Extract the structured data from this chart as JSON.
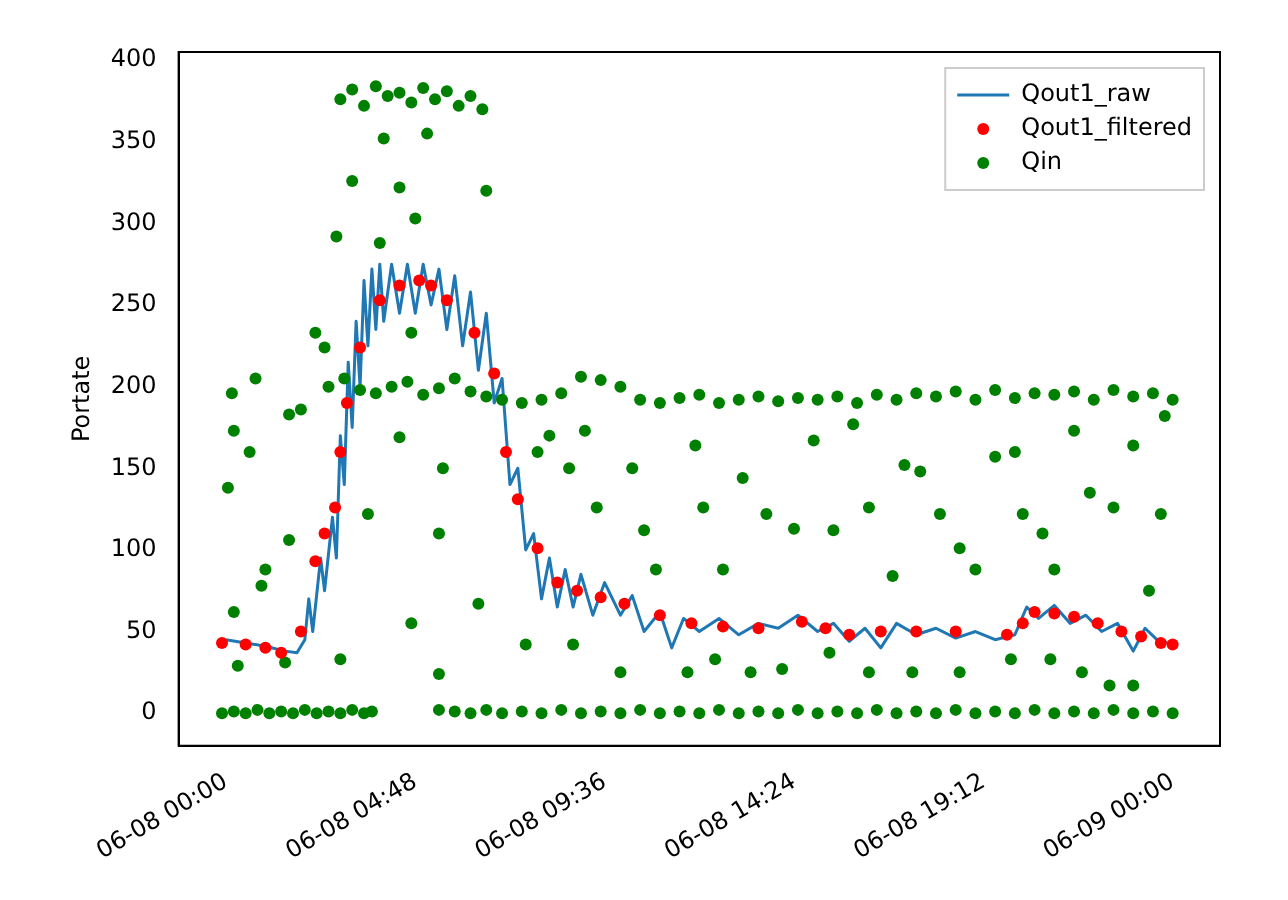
{
  "chart_data": {
    "type": "scatter",
    "ylabel": "Portate",
    "xlim": [
      "--06-07T22:48",
      "--06-09T01:12"
    ],
    "ylim": [
      -20,
      405
    ],
    "xticks": [
      {
        "value": "--06-08T00:00",
        "label": "06-08 00:00"
      },
      {
        "value": "--06-08T04:48",
        "label": "06-08 04:48"
      },
      {
        "value": "--06-08T09:36",
        "label": "06-08 09:36"
      },
      {
        "value": "--06-08T14:24",
        "label": "06-08 14:24"
      },
      {
        "value": "--06-08T19:12",
        "label": "06-08 19:12"
      },
      {
        "value": "--06-09T00:00",
        "label": "06-09 00:00"
      }
    ],
    "yticks": [
      0,
      50,
      100,
      150,
      200,
      250,
      300,
      350,
      400
    ],
    "grid": false,
    "legend": "top right",
    "series": [
      {
        "name": "Qout1_raw",
        "type": "line",
        "marker": "none",
        "color": "#1f77b4",
        "x": [
          "--06-08T00:00",
          "--06-08T00:30",
          "--06-08T01:00",
          "--06-08T01:30",
          "--06-08T01:48",
          "--06-08T02:00",
          "--06-08T02:06",
          "--06-08T02:12",
          "--06-08T02:24",
          "--06-08T02:30",
          "--06-08T02:42",
          "--06-08T02:48",
          "--06-08T02:54",
          "--06-08T03:00",
          "--06-08T03:06",
          "--06-08T03:12",
          "--06-08T03:18",
          "--06-08T03:24",
          "--06-08T03:30",
          "--06-08T03:36",
          "--06-08T03:42",
          "--06-08T03:48",
          "--06-08T03:54",
          "--06-08T04:00",
          "--06-08T04:12",
          "--06-08T04:24",
          "--06-08T04:36",
          "--06-08T04:48",
          "--06-08T05:00",
          "--06-08T05:12",
          "--06-08T05:24",
          "--06-08T05:36",
          "--06-08T05:48",
          "--06-08T06:00",
          "--06-08T06:12",
          "--06-08T06:24",
          "--06-08T06:36",
          "--06-08T06:48",
          "--06-08T07:00",
          "--06-08T07:12",
          "--06-08T07:24",
          "--06-08T07:36",
          "--06-08T07:48",
          "--06-08T08:00",
          "--06-08T08:12",
          "--06-08T08:24",
          "--06-08T08:36",
          "--06-08T08:48",
          "--06-08T09:00",
          "--06-08T09:18",
          "--06-08T09:36",
          "--06-08T10:00",
          "--06-08T10:18",
          "--06-08T10:36",
          "--06-08T11:00",
          "--06-08T11:18",
          "--06-08T11:36",
          "--06-08T12:00",
          "--06-08T12:30",
          "--06-08T13:00",
          "--06-08T13:30",
          "--06-08T14:00",
          "--06-08T14:30",
          "--06-08T15:00",
          "--06-08T15:24",
          "--06-08T15:48",
          "--06-08T16:12",
          "--06-08T16:36",
          "--06-08T17:00",
          "--06-08T17:30",
          "--06-08T18:00",
          "--06-08T18:30",
          "--06-08T19:00",
          "--06-08T19:30",
          "--06-08T20:00",
          "--06-08T20:18",
          "--06-08T20:36",
          "--06-08T21:00",
          "--06-08T21:24",
          "--06-08T21:48",
          "--06-08T22:12",
          "--06-08T22:36",
          "--06-08T23:00",
          "--06-08T23:18",
          "--06-08T23:36",
          "--06-09T00:00"
        ],
        "values": [
          45,
          43,
          41,
          38,
          37,
          45,
          70,
          50,
          95,
          75,
          120,
          95,
          170,
          140,
          215,
          175,
          240,
          200,
          265,
          225,
          272,
          235,
          275,
          240,
          275,
          245,
          275,
          245,
          275,
          250,
          272,
          235,
          268,
          225,
          258,
          210,
          245,
          190,
          205,
          140,
          150,
          100,
          110,
          70,
          95,
          65,
          88,
          65,
          85,
          60,
          80,
          60,
          72,
          50,
          62,
          40,
          58,
          50,
          58,
          48,
          55,
          52,
          60,
          50,
          55,
          44,
          52,
          40,
          55,
          48,
          52,
          46,
          50,
          45,
          48,
          65,
          58,
          66,
          55,
          60,
          50,
          55,
          38,
          52,
          45,
          42
        ]
      },
      {
        "name": "Qout1_filtered",
        "type": "scatter",
        "marker": "circle",
        "color": "#ff0000",
        "x": [
          "--06-07T23:54",
          "--06-08T00:30",
          "--06-08T01:00",
          "--06-08T01:24",
          "--06-08T01:54",
          "--06-08T02:16",
          "--06-08T02:30",
          "--06-08T02:46",
          "--06-08T02:54",
          "--06-08T03:04",
          "--06-08T03:24",
          "--06-08T03:54",
          "--06-08T04:24",
          "--06-08T04:54",
          "--06-08T05:12",
          "--06-08T05:36",
          "--06-08T06:18",
          "--06-08T06:48",
          "--06-08T07:06",
          "--06-08T07:24",
          "--06-08T07:54",
          "--06-08T08:24",
          "--06-08T08:54",
          "--06-08T09:30",
          "--06-08T10:06",
          "--06-08T11:00",
          "--06-08T11:48",
          "--06-08T12:36",
          "--06-08T13:30",
          "--06-08T14:36",
          "--06-08T15:12",
          "--06-08T15:48",
          "--06-08T16:36",
          "--06-08T17:30",
          "--06-08T18:30",
          "--06-08T19:48",
          "--06-08T20:12",
          "--06-08T20:30",
          "--06-08T21:00",
          "--06-08T21:30",
          "--06-08T22:06",
          "--06-08T22:42",
          "--06-08T23:12",
          "--06-08T23:42",
          "--06-09T00:00"
        ],
        "values": [
          43,
          42,
          40,
          37,
          50,
          93,
          110,
          126,
          160,
          190,
          224,
          253,
          262,
          265,
          262,
          253,
          233,
          208,
          160,
          131,
          101,
          80,
          75,
          71,
          67,
          60,
          55,
          53,
          52,
          56,
          52,
          48,
          50,
          50,
          50,
          48,
          55,
          62,
          61,
          59,
          55,
          50,
          47,
          43,
          42
        ]
      },
      {
        "name": "Qin",
        "type": "scatter",
        "marker": "circle",
        "color": "#008000",
        "x": [
          "--06-07T23:54",
          "--06-08T00:12",
          "--06-08T00:30",
          "--06-08T00:48",
          "--06-08T01:06",
          "--06-08T01:24",
          "--06-08T01:42",
          "--06-08T02:00",
          "--06-08T02:18",
          "--06-08T02:36",
          "--06-08T02:54",
          "--06-08T03:12",
          "--06-08T03:30",
          "--06-08T03:42",
          "--06-08T05:24",
          "--06-08T05:48",
          "--06-08T06:12",
          "--06-08T06:36",
          "--06-08T07:00",
          "--06-08T07:30",
          "--06-08T08:00",
          "--06-08T08:30",
          "--06-08T09:00",
          "--06-08T09:30",
          "--06-08T10:00",
          "--06-08T10:30",
          "--06-08T11:00",
          "--06-08T11:30",
          "--06-08T12:00",
          "--06-08T12:30",
          "--06-08T13:00",
          "--06-08T13:30",
          "--06-08T14:00",
          "--06-08T14:30",
          "--06-08T15:00",
          "--06-08T15:30",
          "--06-08T16:00",
          "--06-08T16:30",
          "--06-08T17:00",
          "--06-08T17:30",
          "--06-08T18:00",
          "--06-08T18:30",
          "--06-08T19:00",
          "--06-08T19:30",
          "--06-08T20:00",
          "--06-08T20:30",
          "--06-08T21:00",
          "--06-08T21:30",
          "--06-08T22:00",
          "--06-08T22:30",
          "--06-08T23:00",
          "--06-08T23:30",
          "--06-09T00:00",
          "--06-08T00:09",
          "--06-08T00:45",
          "--06-08T00:12",
          "--06-08T00:36",
          "--06-08T00:03",
          "--06-08T01:36",
          "--06-08T00:12",
          "--06-08T01:00",
          "--06-08T01:36",
          "--06-08T00:54",
          "--06-08T00:18",
          "--06-08T01:30",
          "--06-08T02:16",
          "--06-08T02:30",
          "--06-08T01:54",
          "--06-08T02:48",
          "--06-08T03:12",
          "--06-08T03:54",
          "--06-08T04:24",
          "--06-08T04:48",
          "--06-08T06:36",
          "--06-08T04:42",
          "--06-08T04:24",
          "--06-08T05:30",
          "--06-08T03:36",
          "--06-08T05:24",
          "--06-08T04:42",
          "--06-08T05:24",
          "--06-08T02:54",
          "--06-08T06:24",
          "--06-08T07:36",
          "--06-08T07:54",
          "--06-08T08:12",
          "--06-08T02:54",
          "--06-08T03:12",
          "--06-08T03:30",
          "--06-08T03:48",
          "--06-08T04:06",
          "--06-08T04:24",
          "--06-08T04:42",
          "--06-08T05:00",
          "--06-08T05:18",
          "--06-08T05:36",
          "--06-08T05:54",
          "--06-08T06:12",
          "--06-08T06:30",
          "--06-08T04:00",
          "--06-08T05:06",
          "--06-08T02:36",
          "--06-08T03:00",
          "--06-08T03:24",
          "--06-08T03:48",
          "--06-08T04:12",
          "--06-08T04:36",
          "--06-08T05:00",
          "--06-08T05:24",
          "--06-08T05:48",
          "--06-08T06:12",
          "--06-08T06:36",
          "--06-08T07:00",
          "--06-08T07:30",
          "--06-08T08:00",
          "--06-08T08:30",
          "--06-08T09:00",
          "--06-08T09:30",
          "--06-08T10:00",
          "--06-08T10:30",
          "--06-08T11:00",
          "--06-08T11:30",
          "--06-08T12:00",
          "--06-08T12:30",
          "--06-08T13:00",
          "--06-08T13:30",
          "--06-08T14:00",
          "--06-08T14:30",
          "--06-08T15:00",
          "--06-08T15:30",
          "--06-08T16:00",
          "--06-08T16:30",
          "--06-08T17:00",
          "--06-08T17:30",
          "--06-08T18:00",
          "--06-08T18:30",
          "--06-08T19:00",
          "--06-08T19:30",
          "--06-08T20:00",
          "--06-08T20:30",
          "--06-08T21:00",
          "--06-08T21:30",
          "--06-08T22:00",
          "--06-08T22:30",
          "--06-08T23:00",
          "--06-08T23:30",
          "--06-09T00:00",
          "--06-08T09:06",
          "--06-08T08:42",
          "--06-08T09:24",
          "--06-08T10:36",
          "--06-08T10:54",
          "--06-08T10:18",
          "--06-08T11:54",
          "--06-08T12:06",
          "--06-08T12:36",
          "--06-08T13:06",
          "--06-08T13:42",
          "--06-08T14:24",
          "--06-08T14:54",
          "--06-08T15:24",
          "--06-08T15:54",
          "--06-08T16:18",
          "--06-08T16:54",
          "--06-08T17:12",
          "--06-08T17:36",
          "--06-08T18:06",
          "--06-08T18:36",
          "--06-08T19:00",
          "--06-08T19:30",
          "--06-08T20:00",
          "--06-08T20:12",
          "--06-08T20:42",
          "--06-08T21:00",
          "--06-08T21:30",
          "--06-08T21:54",
          "--06-08T22:30",
          "--06-08T23:00",
          "--06-08T23:24",
          "--06-08T23:42",
          "--06-08T23:48",
          "--06-08T08:48",
          "--06-08T10:00",
          "--06-08T11:42",
          "--06-08T13:18",
          "--06-08T12:24",
          "--06-08T14:06",
          "--06-08T15:18",
          "--06-08T16:18",
          "--06-08T17:24",
          "--06-08T18:36",
          "--06-08T19:54",
          "--06-08T20:54",
          "--06-08T21:42",
          "--06-08T22:24",
          "--06-08T23:00"
        ],
        "values": [
          0,
          1,
          0,
          2,
          0,
          1,
          0,
          2,
          0,
          1,
          0,
          2,
          0,
          1,
          2,
          1,
          0,
          2,
          0,
          1,
          0,
          2,
          0,
          1,
          0,
          2,
          0,
          1,
          0,
          2,
          0,
          1,
          0,
          2,
          0,
          1,
          0,
          2,
          0,
          1,
          0,
          2,
          0,
          1,
          0,
          2,
          0,
          1,
          0,
          2,
          0,
          1,
          0,
          196,
          205,
          173,
          160,
          138,
          183,
          62,
          88,
          106,
          78,
          29,
          31,
          233,
          224,
          186,
          292,
          326,
          288,
          322,
          303,
          320,
          233,
          169,
          150,
          122,
          110,
          55,
          24,
          33,
          67,
          42,
          160,
          170,
          376,
          382,
          372,
          384,
          378,
          380,
          374,
          383,
          376,
          381,
          372,
          378,
          370,
          352,
          355,
          200,
          205,
          198,
          196,
          200,
          203,
          195,
          199,
          205,
          197,
          194,
          192,
          190,
          192,
          196,
          206,
          204,
          200,
          192,
          190,
          193,
          195,
          190,
          192,
          194,
          191,
          193,
          192,
          194,
          190,
          195,
          192,
          196,
          194,
          197,
          192,
          198,
          193,
          196,
          195,
          197,
          192,
          198,
          194,
          196,
          192,
          173,
          150,
          126,
          112,
          88,
          150,
          164,
          126,
          88,
          144,
          122,
          113,
          167,
          112,
          177,
          126,
          84,
          152,
          148,
          122,
          101,
          88,
          157,
          160,
          122,
          110,
          88,
          173,
          135,
          126,
          164,
          75,
          122,
          182,
          42,
          25,
          25,
          25,
          33,
          27,
          37,
          25,
          25,
          25,
          33,
          33,
          25,
          17,
          17
        ]
      }
    ]
  }
}
